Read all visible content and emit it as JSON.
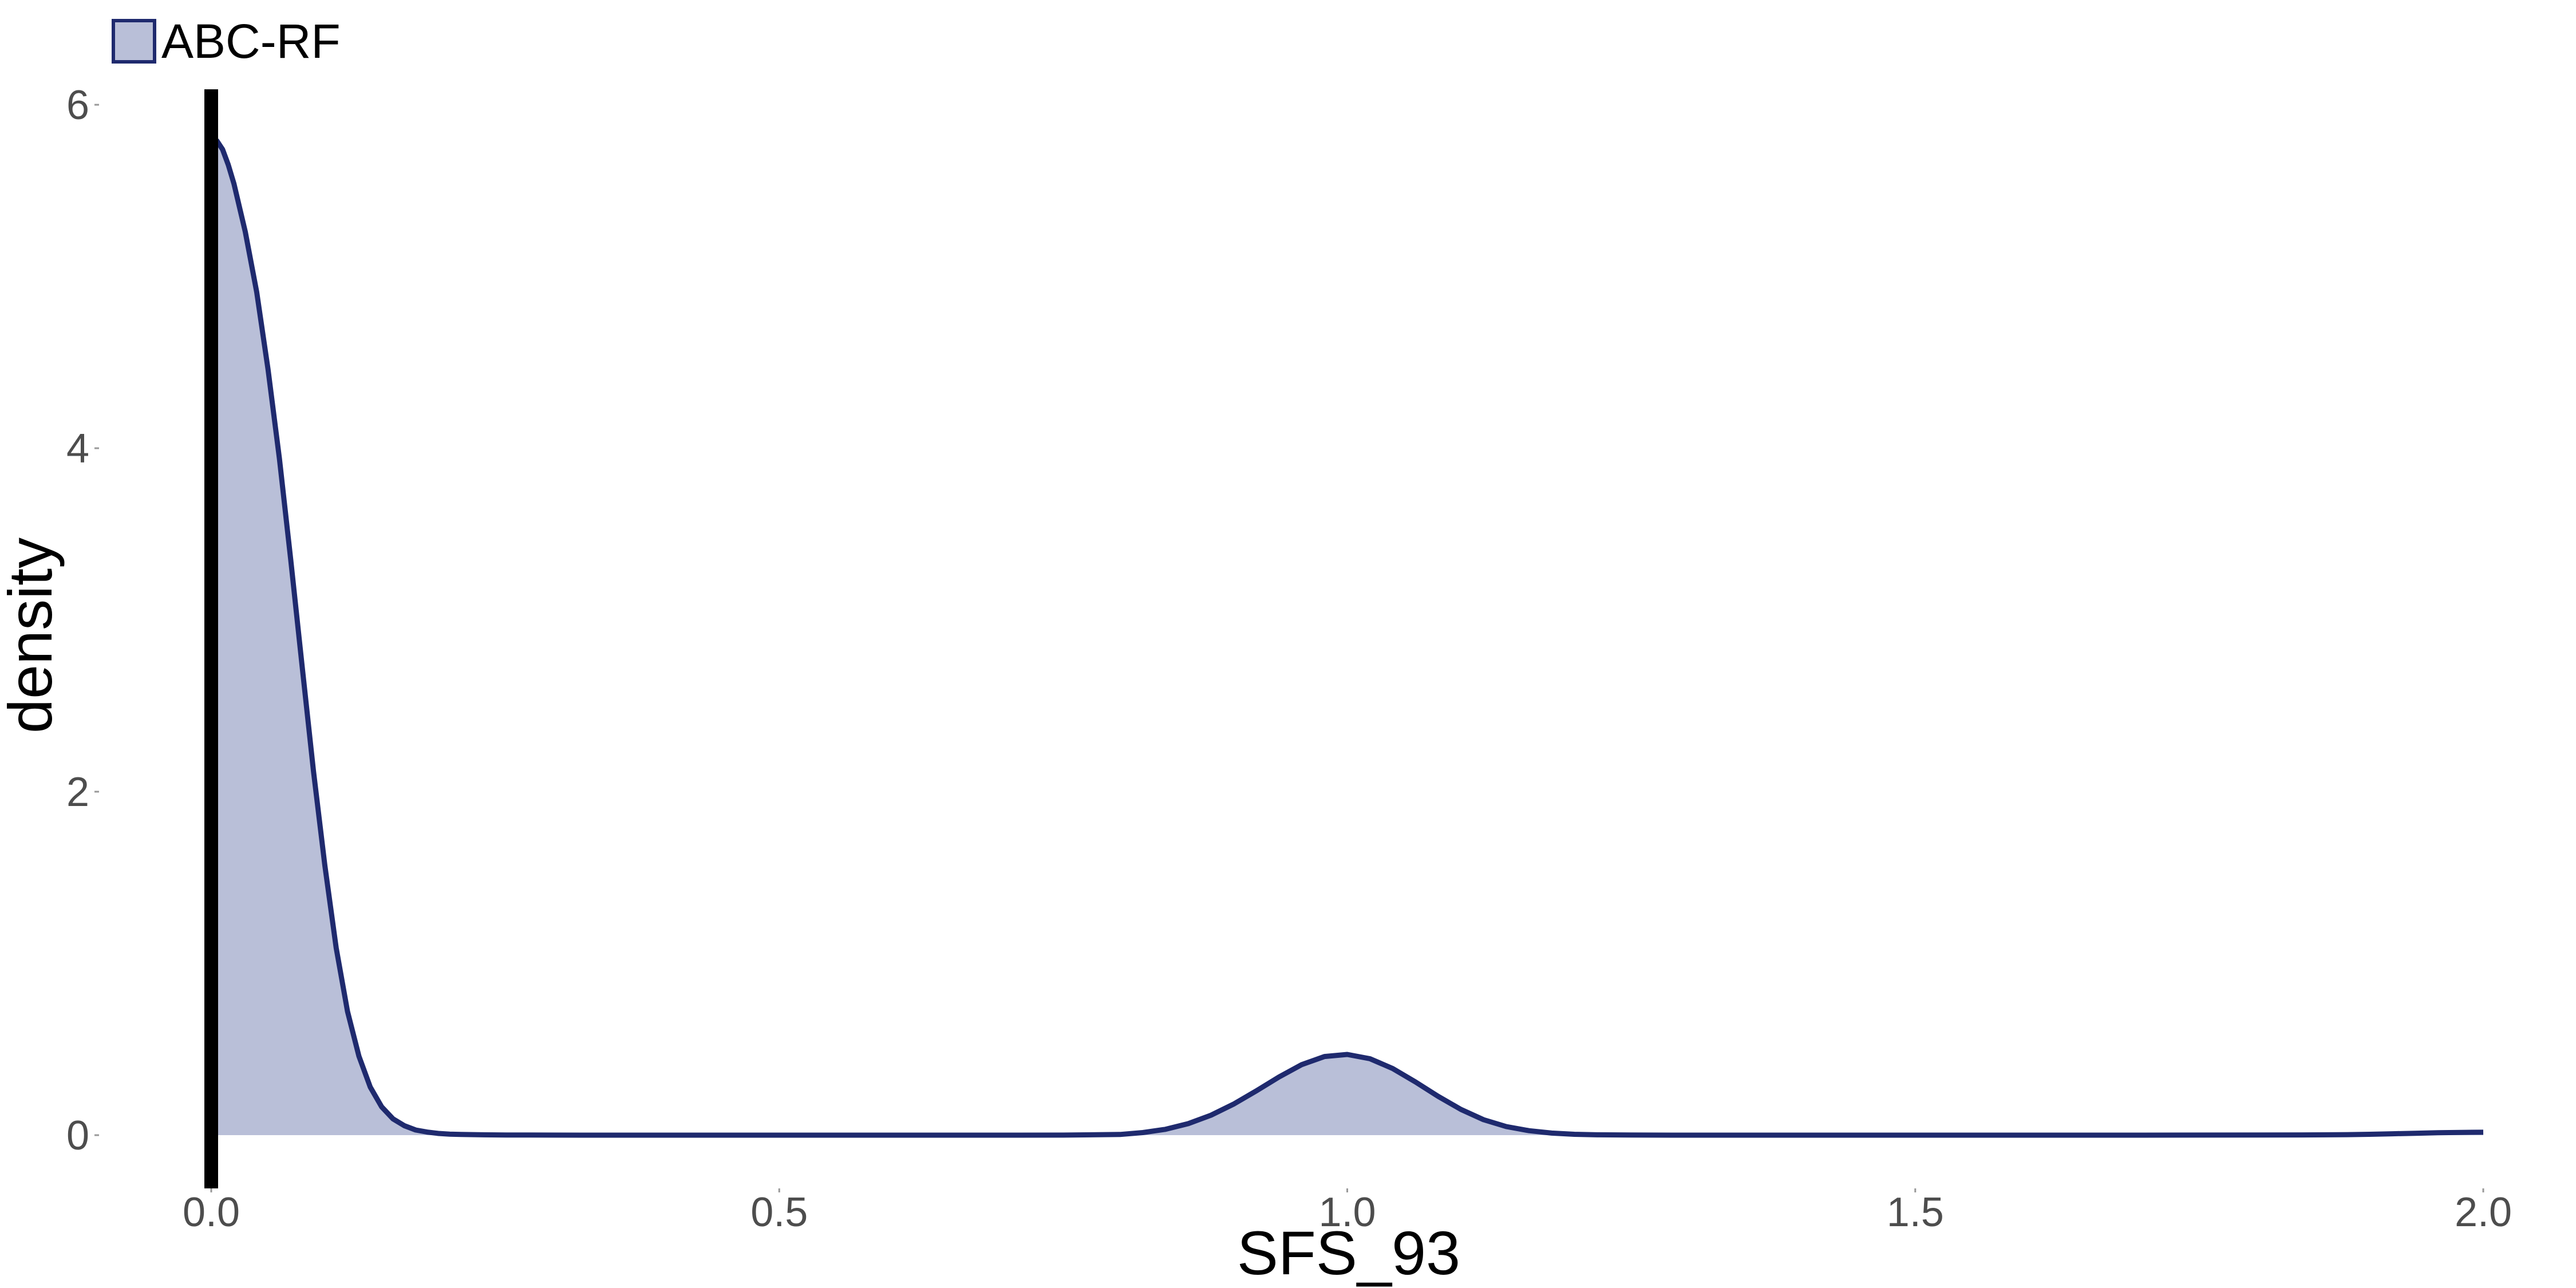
{
  "chart_data": {
    "type": "area",
    "title": "",
    "xlabel": "SFS_93",
    "ylabel": "density",
    "xlim": [
      0,
      2
    ],
    "ylim": [
      0,
      6
    ],
    "x_ticks": [
      0,
      0.5,
      1,
      1.5,
      2
    ],
    "x_tick_labels": [
      "0.0",
      "0.5",
      "1.0",
      "1.5",
      "2.0"
    ],
    "y_ticks": [
      0,
      2,
      4,
      6
    ],
    "y_tick_labels": [
      "0",
      "2",
      "4",
      "6"
    ],
    "grid": false,
    "legend_position": "top-left",
    "reference_line": {
      "x": 0
    },
    "series": [
      {
        "name": "ABC-RF",
        "line_color": "#1f2a6e",
        "fill_color": "#b9bfd8",
        "x": [
          0,
          0.005,
          0.01,
          0.015,
          0.02,
          0.03,
          0.04,
          0.05,
          0.06,
          0.07,
          0.08,
          0.09,
          0.1,
          0.11,
          0.12,
          0.13,
          0.14,
          0.15,
          0.16,
          0.17,
          0.18,
          0.19,
          0.2,
          0.21,
          0.22,
          0.24,
          0.26,
          0.28,
          0.3,
          0.35,
          0.4,
          0.5,
          0.6,
          0.7,
          0.75,
          0.8,
          0.82,
          0.84,
          0.86,
          0.88,
          0.9,
          0.92,
          0.94,
          0.96,
          0.98,
          1.0,
          1.02,
          1.04,
          1.06,
          1.08,
          1.1,
          1.12,
          1.14,
          1.16,
          1.18,
          1.2,
          1.22,
          1.25,
          1.3,
          1.4,
          1.5,
          1.6,
          1.7,
          1.8,
          1.84,
          1.88,
          1.9,
          1.92,
          1.94,
          1.96,
          1.98,
          2.0
        ],
        "y": [
          5.81,
          5.79,
          5.74,
          5.65,
          5.54,
          5.26,
          4.91,
          4.46,
          3.94,
          3.35,
          2.73,
          2.12,
          1.57,
          1.09,
          0.72,
          0.46,
          0.28,
          0.165,
          0.095,
          0.055,
          0.03,
          0.018,
          0.01,
          0.006,
          0.004,
          0.002,
          0.001,
          0.0005,
          0.0002,
          0.0001,
          0.0001,
          0.0001,
          0.0001,
          0.0001,
          0.0003,
          0.004,
          0.015,
          0.034,
          0.067,
          0.116,
          0.181,
          0.258,
          0.339,
          0.411,
          0.458,
          0.47,
          0.445,
          0.388,
          0.31,
          0.226,
          0.15,
          0.09,
          0.05,
          0.026,
          0.012,
          0.005,
          0.002,
          0.0005,
          0.0001,
          0.0001,
          0.0001,
          0.0001,
          0.0001,
          0.0005,
          0.0012,
          0.003,
          0.005,
          0.008,
          0.011,
          0.014,
          0.016,
          0.017
        ]
      }
    ]
  }
}
